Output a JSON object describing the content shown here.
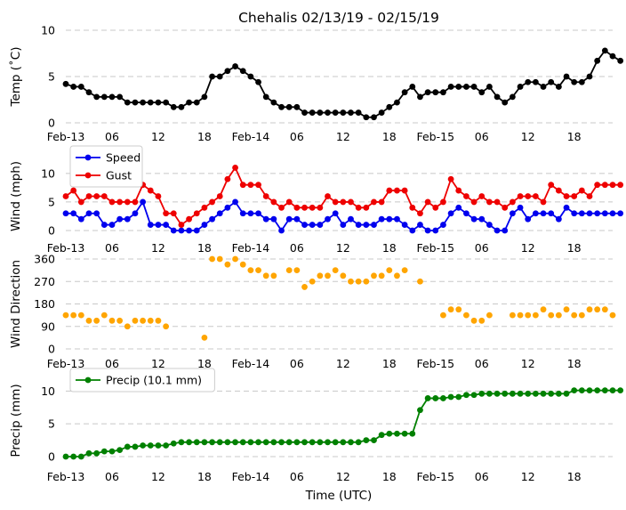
{
  "chart_data": {
    "title": "Chehalis 02/13/19 - 02/15/19",
    "xlabel": "Time (UTC)",
    "x_hours_range": [
      0,
      71
    ],
    "x_tick_labels": [
      {
        "h": 0,
        "label": "Feb-13"
      },
      {
        "h": 6,
        "label": "06"
      },
      {
        "h": 12,
        "label": "12"
      },
      {
        "h": 18,
        "label": "18"
      },
      {
        "h": 24,
        "label": "Feb-14"
      },
      {
        "h": 30,
        "label": "06"
      },
      {
        "h": 36,
        "label": "12"
      },
      {
        "h": 42,
        "label": "18"
      },
      {
        "h": 48,
        "label": "Feb-15"
      },
      {
        "h": 54,
        "label": "06"
      },
      {
        "h": 60,
        "label": "12"
      },
      {
        "h": 66,
        "label": "18"
      }
    ],
    "panels": [
      {
        "id": "temp",
        "type": "line",
        "ylabel": "Temp (˚C)",
        "ylim": [
          0,
          10
        ],
        "yticks": [
          0,
          5,
          10
        ],
        "legend": null,
        "series": [
          {
            "name": "Temp",
            "color": "#000000",
            "values": [
              4.2,
              3.9,
              3.9,
              3.3,
              2.8,
              2.8,
              2.8,
              2.8,
              2.2,
              2.2,
              2.2,
              2.2,
              2.2,
              2.2,
              1.7,
              1.7,
              2.2,
              2.2,
              2.8,
              5.0,
              5.0,
              5.6,
              6.1,
              5.6,
              5.0,
              4.4,
              2.8,
              2.2,
              1.7,
              1.7,
              1.7,
              1.1,
              1.1,
              1.1,
              1.1,
              1.1,
              1.1,
              1.1,
              1.1,
              0.6,
              0.6,
              1.1,
              1.7,
              2.2,
              3.3,
              3.9,
              2.8,
              3.3,
              3.3,
              3.3,
              3.9,
              3.9,
              3.9,
              3.9,
              3.3,
              3.9,
              2.8,
              2.2,
              2.8,
              3.9,
              4.4,
              4.4,
              3.9,
              4.4,
              3.9,
              5.0,
              4.4,
              4.4,
              5.0,
              6.7,
              7.8,
              7.2,
              6.7
            ]
          }
        ]
      },
      {
        "id": "wind",
        "type": "line",
        "ylabel": "Wind (mph)",
        "ylim": [
          0,
          12
        ],
        "yticks": [
          0,
          5,
          10
        ],
        "legend": "top-left",
        "series": [
          {
            "name": "Speed",
            "color": "#0000ee",
            "values": [
              3,
              3,
              2,
              3,
              3,
              1,
              1,
              2,
              2,
              3,
              5,
              1,
              1,
              1,
              0,
              0,
              0,
              0,
              1,
              2,
              3,
              4,
              5,
              3,
              3,
              3,
              2,
              2,
              0,
              2,
              2,
              1,
              1,
              1,
              2,
              3,
              1,
              2,
              1,
              1,
              1,
              2,
              2,
              2,
              1,
              0,
              1,
              0,
              0,
              1,
              3,
              4,
              3,
              2,
              2,
              1,
              0,
              0,
              3,
              4,
              2,
              3,
              3,
              3,
              2,
              4,
              3,
              3,
              3,
              3,
              3,
              3,
              3
            ]
          },
          {
            "name": "Gust",
            "color": "#ee0000",
            "values": [
              6,
              7,
              5,
              6,
              6,
              6,
              5,
              5,
              5,
              5,
              8,
              7,
              6,
              3,
              3,
              1,
              2,
              3,
              4,
              5,
              6,
              9,
              11,
              8,
              8,
              8,
              6,
              5,
              4,
              5,
              4,
              4,
              4,
              4,
              6,
              5,
              5,
              5,
              4,
              4,
              5,
              5,
              7,
              7,
              7,
              4,
              3,
              5,
              4,
              5,
              9,
              7,
              6,
              5,
              6,
              5,
              5,
              4,
              5,
              6,
              6,
              6,
              5,
              8,
              7,
              6,
              6,
              7,
              6,
              8,
              8,
              8,
              8
            ]
          }
        ]
      },
      {
        "id": "dir",
        "type": "scatter",
        "ylabel": "Wind Direction",
        "ylim": [
          0,
          360
        ],
        "yticks": [
          0,
          90,
          180,
          270,
          360
        ],
        "legend": null,
        "series": [
          {
            "name": "Direction",
            "color": "#ffa500",
            "values": [
              135,
              135,
              135,
              113,
              113,
              135,
              113,
              113,
              90,
              113,
              113,
              113,
              113,
              90,
              null,
              null,
              null,
              null,
              45,
              360,
              360,
              338,
              360,
              338,
              315,
              315,
              293,
              293,
              null,
              315,
              315,
              248,
              270,
              293,
              293,
              315,
              293,
              270,
              270,
              270,
              293,
              293,
              315,
              293,
              315,
              null,
              270,
              null,
              null,
              135,
              158,
              158,
              135,
              113,
              113,
              135,
              null,
              null,
              135,
              135,
              135,
              135,
              158,
              135,
              135,
              158,
              135,
              135,
              158,
              158,
              158,
              135,
              null
            ]
          }
        ]
      },
      {
        "id": "precip",
        "type": "line",
        "ylabel": "Precip (mm)",
        "ylim": [
          0,
          11
        ],
        "yticks": [
          0,
          5,
          10
        ],
        "legend": "top-left",
        "series": [
          {
            "name": "Precip (10.1 mm)",
            "color": "#008000",
            "values": [
              0,
              0,
              0,
              0.5,
              0.5,
              0.8,
              0.8,
              1.0,
              1.5,
              1.5,
              1.7,
              1.7,
              1.7,
              1.7,
              2.0,
              2.2,
              2.2,
              2.2,
              2.2,
              2.2,
              2.2,
              2.2,
              2.2,
              2.2,
              2.2,
              2.2,
              2.2,
              2.2,
              2.2,
              2.2,
              2.2,
              2.2,
              2.2,
              2.2,
              2.2,
              2.2,
              2.2,
              2.2,
              2.2,
              2.5,
              2.5,
              3.3,
              3.5,
              3.5,
              3.5,
              3.5,
              7.1,
              8.9,
              8.9,
              8.9,
              9.1,
              9.1,
              9.4,
              9.4,
              9.6,
              9.6,
              9.6,
              9.6,
              9.6,
              9.6,
              9.6,
              9.6,
              9.6,
              9.6,
              9.6,
              9.6,
              10.1,
              10.1,
              10.1,
              10.1,
              10.1,
              10.1,
              10.1
            ]
          }
        ]
      }
    ]
  }
}
